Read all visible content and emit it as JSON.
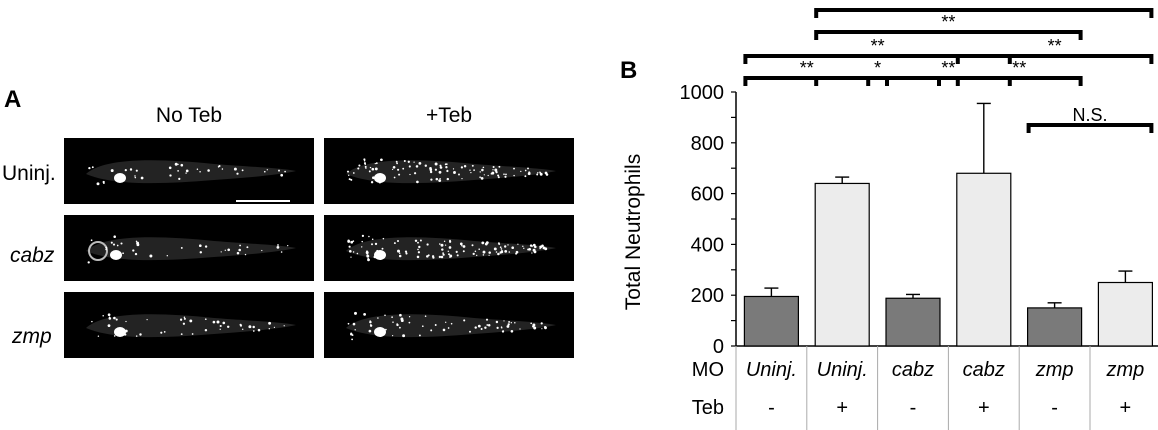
{
  "panel_a": {
    "label": "A",
    "col_headers": [
      "No Teb",
      "+Teb"
    ],
    "row_labels": [
      "Uninj.",
      "cabz",
      "zmp"
    ]
  },
  "panel_b": {
    "label": "B"
  },
  "chart_data": {
    "type": "bar",
    "ylabel": "Total Neutrophils",
    "ylim": [
      0,
      1000
    ],
    "yticks": [
      0,
      200,
      400,
      600,
      800,
      1000
    ],
    "categories": [
      "Uninj./-",
      "Uninj./+",
      "cabz/-",
      "cabz/+",
      "zmp/-",
      "zmp/+"
    ],
    "values": [
      195,
      640,
      188,
      680,
      150,
      250
    ],
    "error_upper": [
      228,
      665,
      203,
      955,
      170,
      295
    ],
    "bar_colors": [
      "#7a7a7a",
      "#ececec",
      "#7a7a7a",
      "#ececec",
      "#7a7a7a",
      "#ececec"
    ],
    "table_rows": [
      {
        "label": "MO",
        "cells": [
          "Uninj.",
          "Uninj.",
          "cabz",
          "cabz",
          "zmp",
          "zmp"
        ]
      },
      {
        "label": "Teb",
        "cells": [
          "-",
          "+",
          "-",
          "+",
          "-",
          "+"
        ]
      }
    ],
    "significance": [
      {
        "from": 0,
        "to": 1,
        "label": "**"
      },
      {
        "from": 1,
        "to": 2,
        "label": "*"
      },
      {
        "from": 2,
        "to": 3,
        "label": "**"
      },
      {
        "from": 3,
        "to": 4,
        "label": "**"
      },
      {
        "from": 0,
        "to": 3,
        "label": "**"
      },
      {
        "from": 3,
        "to": 5,
        "label": "**"
      },
      {
        "from": 1,
        "to": 4,
        "label": "**"
      },
      {
        "from": 1,
        "to": 5,
        "label": "*"
      },
      {
        "from": 4,
        "to": 5,
        "label": "N.S."
      }
    ]
  }
}
